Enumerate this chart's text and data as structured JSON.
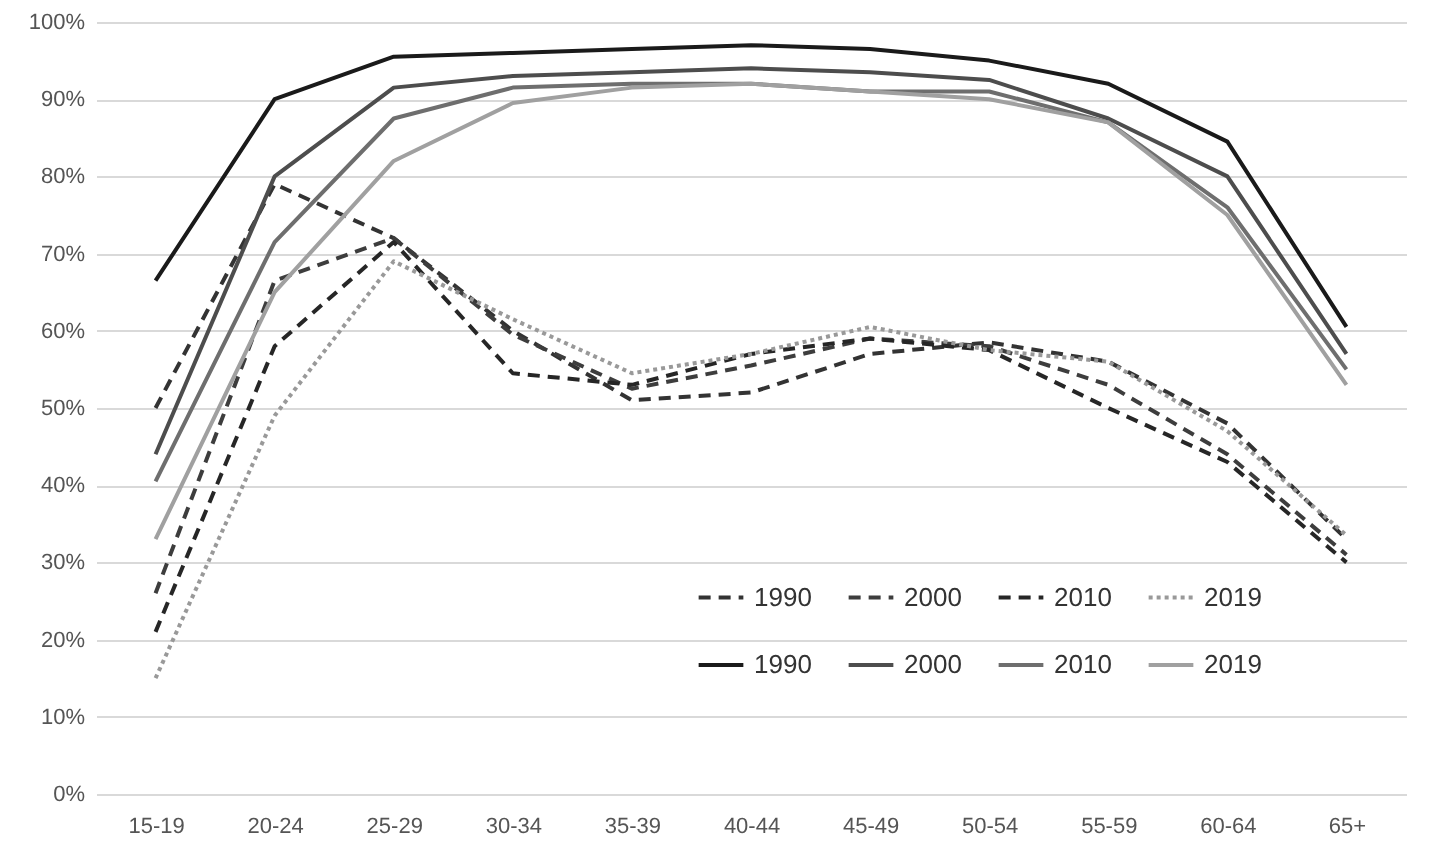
{
  "chart_data": {
    "type": "line",
    "categories": [
      "15-19",
      "20-24",
      "25-29",
      "30-34",
      "35-39",
      "40-44",
      "45-49",
      "50-54",
      "55-59",
      "60-64",
      "65+"
    ],
    "series": [
      {
        "name": "1990",
        "color": "#333333",
        "line_style": "dashed",
        "values": [
          50,
          79,
          72,
          60,
          51,
          52,
          57,
          58.5,
          56,
          48,
          33
        ]
      },
      {
        "name": "2000",
        "color": "#3d3d3d",
        "line_style": "dashed",
        "values": [
          26,
          66.5,
          72,
          59.5,
          52.5,
          55.5,
          59,
          58,
          53,
          44,
          31
        ]
      },
      {
        "name": "2010",
        "color": "#262626",
        "line_style": "dashed",
        "values": [
          21,
          58,
          71.5,
          54.5,
          53,
          57,
          59,
          57.5,
          50,
          43,
          30
        ]
      },
      {
        "name": "2019",
        "color": "#999999",
        "line_style": "dotted",
        "values": [
          15,
          49,
          69,
          61.5,
          54.5,
          57,
          60.5,
          57.5,
          56,
          47,
          33.5
        ]
      },
      {
        "name": "1990",
        "color": "#1a1a1a",
        "line_style": "solid",
        "values": [
          66.5,
          90,
          95.5,
          96,
          96.5,
          97,
          96.5,
          95,
          92,
          84.5,
          60.5
        ]
      },
      {
        "name": "2000",
        "color": "#4d4d4d",
        "line_style": "solid",
        "values": [
          44,
          80,
          91.5,
          93,
          93.5,
          94,
          93.5,
          92.5,
          87.5,
          80,
          57
        ]
      },
      {
        "name": "2010",
        "color": "#6e6e6e",
        "line_style": "solid",
        "values": [
          40.5,
          71.5,
          87.5,
          91.5,
          92,
          92,
          91,
          91,
          87,
          76,
          55
        ]
      },
      {
        "name": "2019",
        "color": "#a0a0a0",
        "line_style": "solid",
        "values": [
          33,
          65,
          82,
          89.5,
          91.5,
          92,
          91,
          90,
          87,
          75,
          53
        ]
      }
    ],
    "ylim": [
      0,
      100
    ],
    "yticks": [
      {
        "value": 0,
        "label": "0%"
      },
      {
        "value": 10,
        "label": "10%"
      },
      {
        "value": 20,
        "label": "20%"
      },
      {
        "value": 30,
        "label": "30%"
      },
      {
        "value": 40,
        "label": "40%"
      },
      {
        "value": 50,
        "label": "50%"
      },
      {
        "value": 60,
        "label": "60%"
      },
      {
        "value": 70,
        "label": "70%"
      },
      {
        "value": 80,
        "label": "80%"
      },
      {
        "value": 90,
        "label": "90%"
      },
      {
        "value": 100,
        "label": "100%"
      }
    ],
    "grid": "y",
    "legend": "bottom right",
    "marker": "none"
  }
}
